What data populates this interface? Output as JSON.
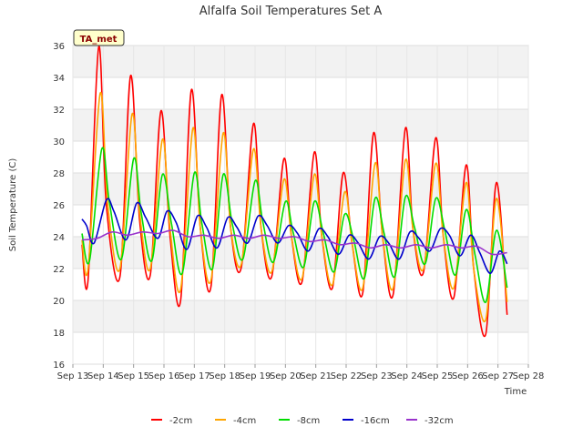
{
  "chart_data": {
    "type": "line",
    "title": "Alfalfa Soil Temperatures Set A",
    "xlabel": "Time",
    "ylabel": "Soil Temperature (C)",
    "station_label": "TA_met",
    "ylim": [
      16,
      36
    ],
    "yticks": [
      16,
      18,
      20,
      22,
      24,
      26,
      28,
      30,
      32,
      34,
      36
    ],
    "xlim": [
      13,
      28
    ],
    "xticks": [
      {
        "value": 13,
        "label": "Sep 13"
      },
      {
        "value": 14,
        "label": "Sep 14"
      },
      {
        "value": 15,
        "label": "Sep 15"
      },
      {
        "value": 16,
        "label": "Sep 16"
      },
      {
        "value": 17,
        "label": "Sep 17"
      },
      {
        "value": 18,
        "label": "Sep 18"
      },
      {
        "value": 19,
        "label": "Sep 19"
      },
      {
        "value": 20,
        "label": "Sep 20"
      },
      {
        "value": 21,
        "label": "Sep 21"
      },
      {
        "value": 22,
        "label": "Sep 22"
      },
      {
        "value": 23,
        "label": "Sep 23"
      },
      {
        "value": 24,
        "label": "Sep 24"
      },
      {
        "value": 25,
        "label": "Sep 25"
      },
      {
        "value": 26,
        "label": "Sep 26"
      },
      {
        "value": 27,
        "label": "Sep 27"
      },
      {
        "value": 28,
        "label": "Sep 28"
      }
    ],
    "grid": true,
    "legend_position": "bottom",
    "series": [
      {
        "name": "-2cm",
        "color": "#ff0000",
        "points": [
          [
            13.3,
            23.5
          ],
          [
            13.5,
            21.3
          ],
          [
            13.85,
            35.9
          ],
          [
            14.1,
            26.0
          ],
          [
            14.55,
            21.5
          ],
          [
            14.9,
            34.1
          ],
          [
            15.2,
            25.0
          ],
          [
            15.55,
            21.6
          ],
          [
            15.9,
            31.9
          ],
          [
            16.2,
            24.0
          ],
          [
            16.55,
            20.0
          ],
          [
            16.9,
            33.2
          ],
          [
            17.2,
            24.5
          ],
          [
            17.55,
            20.9
          ],
          [
            17.9,
            32.9
          ],
          [
            18.2,
            24.5
          ],
          [
            18.55,
            22.1
          ],
          [
            18.95,
            31.1
          ],
          [
            19.2,
            24.5
          ],
          [
            19.55,
            21.5
          ],
          [
            19.95,
            28.9
          ],
          [
            20.2,
            24.0
          ],
          [
            20.55,
            21.2
          ],
          [
            20.95,
            29.3
          ],
          [
            21.2,
            24.0
          ],
          [
            21.55,
            20.8
          ],
          [
            21.9,
            28.0
          ],
          [
            22.2,
            23.5
          ],
          [
            22.55,
            20.5
          ],
          [
            22.9,
            30.5
          ],
          [
            23.2,
            24.0
          ],
          [
            23.55,
            20.4
          ],
          [
            23.95,
            30.8
          ],
          [
            24.2,
            24.5
          ],
          [
            24.55,
            21.8
          ],
          [
            24.95,
            30.2
          ],
          [
            25.2,
            24.0
          ],
          [
            25.55,
            20.2
          ],
          [
            25.95,
            28.5
          ],
          [
            26.2,
            22.0
          ],
          [
            26.6,
            17.9
          ],
          [
            26.95,
            27.4
          ],
          [
            27.3,
            19.1
          ]
        ]
      },
      {
        "name": "-4cm",
        "color": "#ffa500",
        "points": [
          [
            13.3,
            23.8
          ],
          [
            13.5,
            22.0
          ],
          [
            13.9,
            33.0
          ],
          [
            14.15,
            26.0
          ],
          [
            14.55,
            22.0
          ],
          [
            14.95,
            31.7
          ],
          [
            15.2,
            25.5
          ],
          [
            15.55,
            22.0
          ],
          [
            15.95,
            30.1
          ],
          [
            16.2,
            24.5
          ],
          [
            16.55,
            20.7
          ],
          [
            16.95,
            30.8
          ],
          [
            17.2,
            24.5
          ],
          [
            17.55,
            21.3
          ],
          [
            17.95,
            30.5
          ],
          [
            18.2,
            24.5
          ],
          [
            18.55,
            22.3
          ],
          [
            18.95,
            29.5
          ],
          [
            19.2,
            24.5
          ],
          [
            19.55,
            21.8
          ],
          [
            19.95,
            27.6
          ],
          [
            20.2,
            24.0
          ],
          [
            20.55,
            21.4
          ],
          [
            20.95,
            27.9
          ],
          [
            21.2,
            24.0
          ],
          [
            21.55,
            21.0
          ],
          [
            21.95,
            26.8
          ],
          [
            22.2,
            23.5
          ],
          [
            22.55,
            20.8
          ],
          [
            22.95,
            28.6
          ],
          [
            23.2,
            24.0
          ],
          [
            23.55,
            20.8
          ],
          [
            23.95,
            28.8
          ],
          [
            24.2,
            24.5
          ],
          [
            24.55,
            22.0
          ],
          [
            24.95,
            28.6
          ],
          [
            25.2,
            24.0
          ],
          [
            25.55,
            20.8
          ],
          [
            25.95,
            27.4
          ],
          [
            26.2,
            22.0
          ],
          [
            26.6,
            18.8
          ],
          [
            26.95,
            26.4
          ],
          [
            27.3,
            19.9
          ]
        ]
      },
      {
        "name": "-8cm",
        "color": "#00dd00",
        "points": [
          [
            13.3,
            24.2
          ],
          [
            13.55,
            22.5
          ],
          [
            13.95,
            29.5
          ],
          [
            14.2,
            26.2
          ],
          [
            14.6,
            22.6
          ],
          [
            15.0,
            28.9
          ],
          [
            15.25,
            25.5
          ],
          [
            15.6,
            22.5
          ],
          [
            15.95,
            27.9
          ],
          [
            16.25,
            24.8
          ],
          [
            16.6,
            21.7
          ],
          [
            17.0,
            28.0
          ],
          [
            17.25,
            24.8
          ],
          [
            17.6,
            22.0
          ],
          [
            17.95,
            27.9
          ],
          [
            18.25,
            24.8
          ],
          [
            18.6,
            22.6
          ],
          [
            19.0,
            27.5
          ],
          [
            19.25,
            25.0
          ],
          [
            19.6,
            22.4
          ],
          [
            20.0,
            26.2
          ],
          [
            20.25,
            24.3
          ],
          [
            20.6,
            22.1
          ],
          [
            20.95,
            26.2
          ],
          [
            21.25,
            24.2
          ],
          [
            21.6,
            21.8
          ],
          [
            21.95,
            25.4
          ],
          [
            22.25,
            23.8
          ],
          [
            22.6,
            21.4
          ],
          [
            22.95,
            26.4
          ],
          [
            23.25,
            24.2
          ],
          [
            23.6,
            21.5
          ],
          [
            23.95,
            26.5
          ],
          [
            24.25,
            24.6
          ],
          [
            24.6,
            22.3
          ],
          [
            24.95,
            26.4
          ],
          [
            25.25,
            24.4
          ],
          [
            25.6,
            21.6
          ],
          [
            25.95,
            25.7
          ],
          [
            26.25,
            22.8
          ],
          [
            26.6,
            19.9
          ],
          [
            26.95,
            24.4
          ],
          [
            27.3,
            20.8
          ]
        ]
      },
      {
        "name": "-16cm",
        "color": "#0000cc",
        "points": [
          [
            13.3,
            25.1
          ],
          [
            13.45,
            24.7
          ],
          [
            13.7,
            23.6
          ],
          [
            14.1,
            26.3
          ],
          [
            14.35,
            25.6
          ],
          [
            14.75,
            23.8
          ],
          [
            15.1,
            26.1
          ],
          [
            15.4,
            25.2
          ],
          [
            15.8,
            23.9
          ],
          [
            16.1,
            25.6
          ],
          [
            16.4,
            24.9
          ],
          [
            16.75,
            23.2
          ],
          [
            17.1,
            25.3
          ],
          [
            17.4,
            24.6
          ],
          [
            17.75,
            23.3
          ],
          [
            18.1,
            25.2
          ],
          [
            18.4,
            24.6
          ],
          [
            18.75,
            23.6
          ],
          [
            19.1,
            25.3
          ],
          [
            19.4,
            24.7
          ],
          [
            19.75,
            23.6
          ],
          [
            20.1,
            24.7
          ],
          [
            20.4,
            24.2
          ],
          [
            20.75,
            23.1
          ],
          [
            21.1,
            24.5
          ],
          [
            21.4,
            24.0
          ],
          [
            21.75,
            22.9
          ],
          [
            22.1,
            24.1
          ],
          [
            22.4,
            23.6
          ],
          [
            22.75,
            22.6
          ],
          [
            23.1,
            24.0
          ],
          [
            23.4,
            23.6
          ],
          [
            23.75,
            22.6
          ],
          [
            24.1,
            24.3
          ],
          [
            24.4,
            23.9
          ],
          [
            24.75,
            23.1
          ],
          [
            25.1,
            24.5
          ],
          [
            25.4,
            24.1
          ],
          [
            25.75,
            22.8
          ],
          [
            26.1,
            24.1
          ],
          [
            26.4,
            23.0
          ],
          [
            26.75,
            21.7
          ],
          [
            27.05,
            23.1
          ],
          [
            27.3,
            22.3
          ]
        ]
      },
      {
        "name": "-32cm",
        "color": "#9933cc",
        "points": [
          [
            13.3,
            23.8
          ],
          [
            13.8,
            23.9
          ],
          [
            14.3,
            24.3
          ],
          [
            14.8,
            24.1
          ],
          [
            15.3,
            24.3
          ],
          [
            15.8,
            24.2
          ],
          [
            16.3,
            24.4
          ],
          [
            16.8,
            24.0
          ],
          [
            17.3,
            24.1
          ],
          [
            17.8,
            23.9
          ],
          [
            18.3,
            24.1
          ],
          [
            18.8,
            23.9
          ],
          [
            19.3,
            24.1
          ],
          [
            19.8,
            23.9
          ],
          [
            20.3,
            24.0
          ],
          [
            20.8,
            23.7
          ],
          [
            21.3,
            23.8
          ],
          [
            21.8,
            23.5
          ],
          [
            22.3,
            23.6
          ],
          [
            22.8,
            23.3
          ],
          [
            23.3,
            23.5
          ],
          [
            23.8,
            23.3
          ],
          [
            24.3,
            23.5
          ],
          [
            24.8,
            23.3
          ],
          [
            25.3,
            23.5
          ],
          [
            25.8,
            23.3
          ],
          [
            26.3,
            23.4
          ],
          [
            26.8,
            22.9
          ],
          [
            27.3,
            23.0
          ]
        ]
      }
    ]
  }
}
